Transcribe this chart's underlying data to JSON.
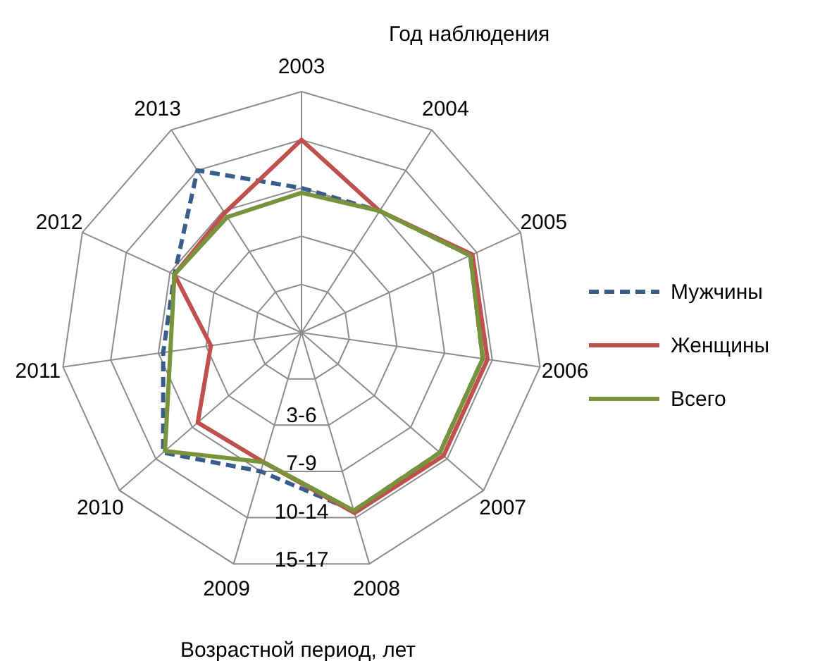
{
  "chart_data": {
    "type": "radar",
    "xlabel": "Год наблюдения",
    "ylabel": "Возрастной период, лет",
    "categories": [
      "2003",
      "2004",
      "2005",
      "2006",
      "2007",
      "2008",
      "2009",
      "2010",
      "2011",
      "2012",
      "2013"
    ],
    "series": [
      {
        "name": "Мужчины",
        "color": "#385d8a",
        "line_style": "dashed",
        "values": [
          3.0,
          3.0,
          3.85,
          3.8,
          3.8,
          3.85,
          3.0,
          3.8,
          2.9,
          2.9,
          4.0
        ]
      },
      {
        "name": "Женщины",
        "color": "#c0504d",
        "line_style": "solid",
        "values": [
          4.0,
          3.0,
          3.9,
          3.9,
          3.9,
          3.9,
          2.8,
          2.85,
          1.9,
          2.9,
          2.95
        ]
      },
      {
        "name": "Всего",
        "color": "#77933c",
        "line_style": "solid",
        "values": [
          2.9,
          3.0,
          3.85,
          3.8,
          3.8,
          3.85,
          2.8,
          3.75,
          2.75,
          2.9,
          2.85
        ]
      }
    ],
    "ylim": [
      0,
      5
    ],
    "yticks": [
      {
        "value": 2,
        "label": "3-6"
      },
      {
        "value": 3,
        "label": "7-9"
      },
      {
        "value": 4,
        "label": "10-14"
      },
      {
        "value": 5,
        "label": "15-17"
      }
    ],
    "grid": true,
    "legend": "right",
    "marker": "none"
  }
}
